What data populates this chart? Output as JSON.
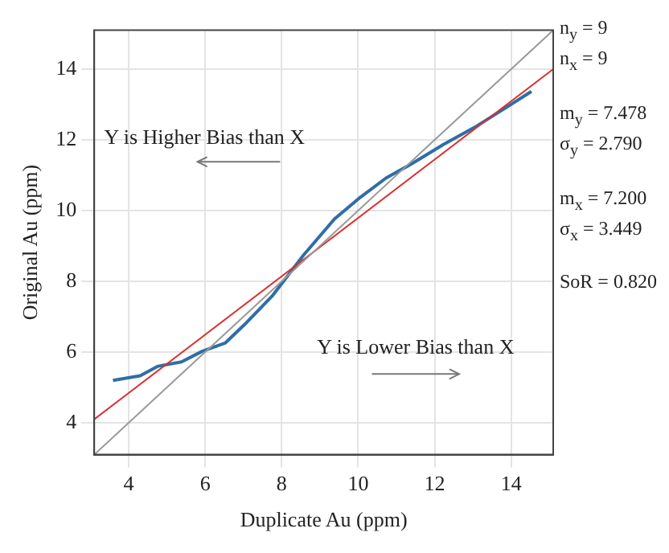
{
  "chart_data": {
    "type": "line",
    "xlabel": "Duplicate Au (ppm)",
    "ylabel": "Original Au (ppm)",
    "series": [
      {
        "color": "#999999",
        "x": [
          3.1,
          15.1
        ],
        "values": [
          3.1,
          15.1
        ]
      },
      {
        "color": "#d93030",
        "x": [
          3.1,
          15.1
        ],
        "values": [
          4.1,
          14.0
        ]
      },
      {
        "color": "#2f6ea5",
        "x": [
          3.59,
          4.3,
          4.77,
          5.38,
          5.92,
          6.53,
          7.08,
          7.75,
          8.57,
          9.38,
          10.06,
          10.73,
          11.41,
          12.23,
          13.04,
          13.85,
          14.53
        ],
        "values": [
          5.2,
          5.33,
          5.6,
          5.72,
          6.02,
          6.26,
          6.83,
          7.58,
          8.74,
          9.76,
          10.38,
          10.92,
          11.33,
          11.87,
          12.35,
          12.9,
          13.37
        ]
      }
    ],
    "xlim": [
      3.1,
      15.1
    ],
    "ylim": [
      3.1,
      15.1
    ],
    "xticks": [
      4,
      6,
      8,
      10,
      12,
      14
    ],
    "yticks": [
      4,
      6,
      8,
      10,
      12,
      14
    ],
    "grid": true,
    "legend": false,
    "marker": "none",
    "line_style": "solid",
    "annotations": [
      "Y is Higher Bias than X",
      "Y is Lower Bias than X",
      "n$_{y}$ = 9",
      "n$_{x}$ = 9",
      "m$_{y}$ = 7.478",
      "σ$_{y}$ = 2.790",
      "m$_{x}$ = 7.200",
      "σ$_{x}$ = 3.449",
      "SoR = 0.820"
    ]
  }
}
